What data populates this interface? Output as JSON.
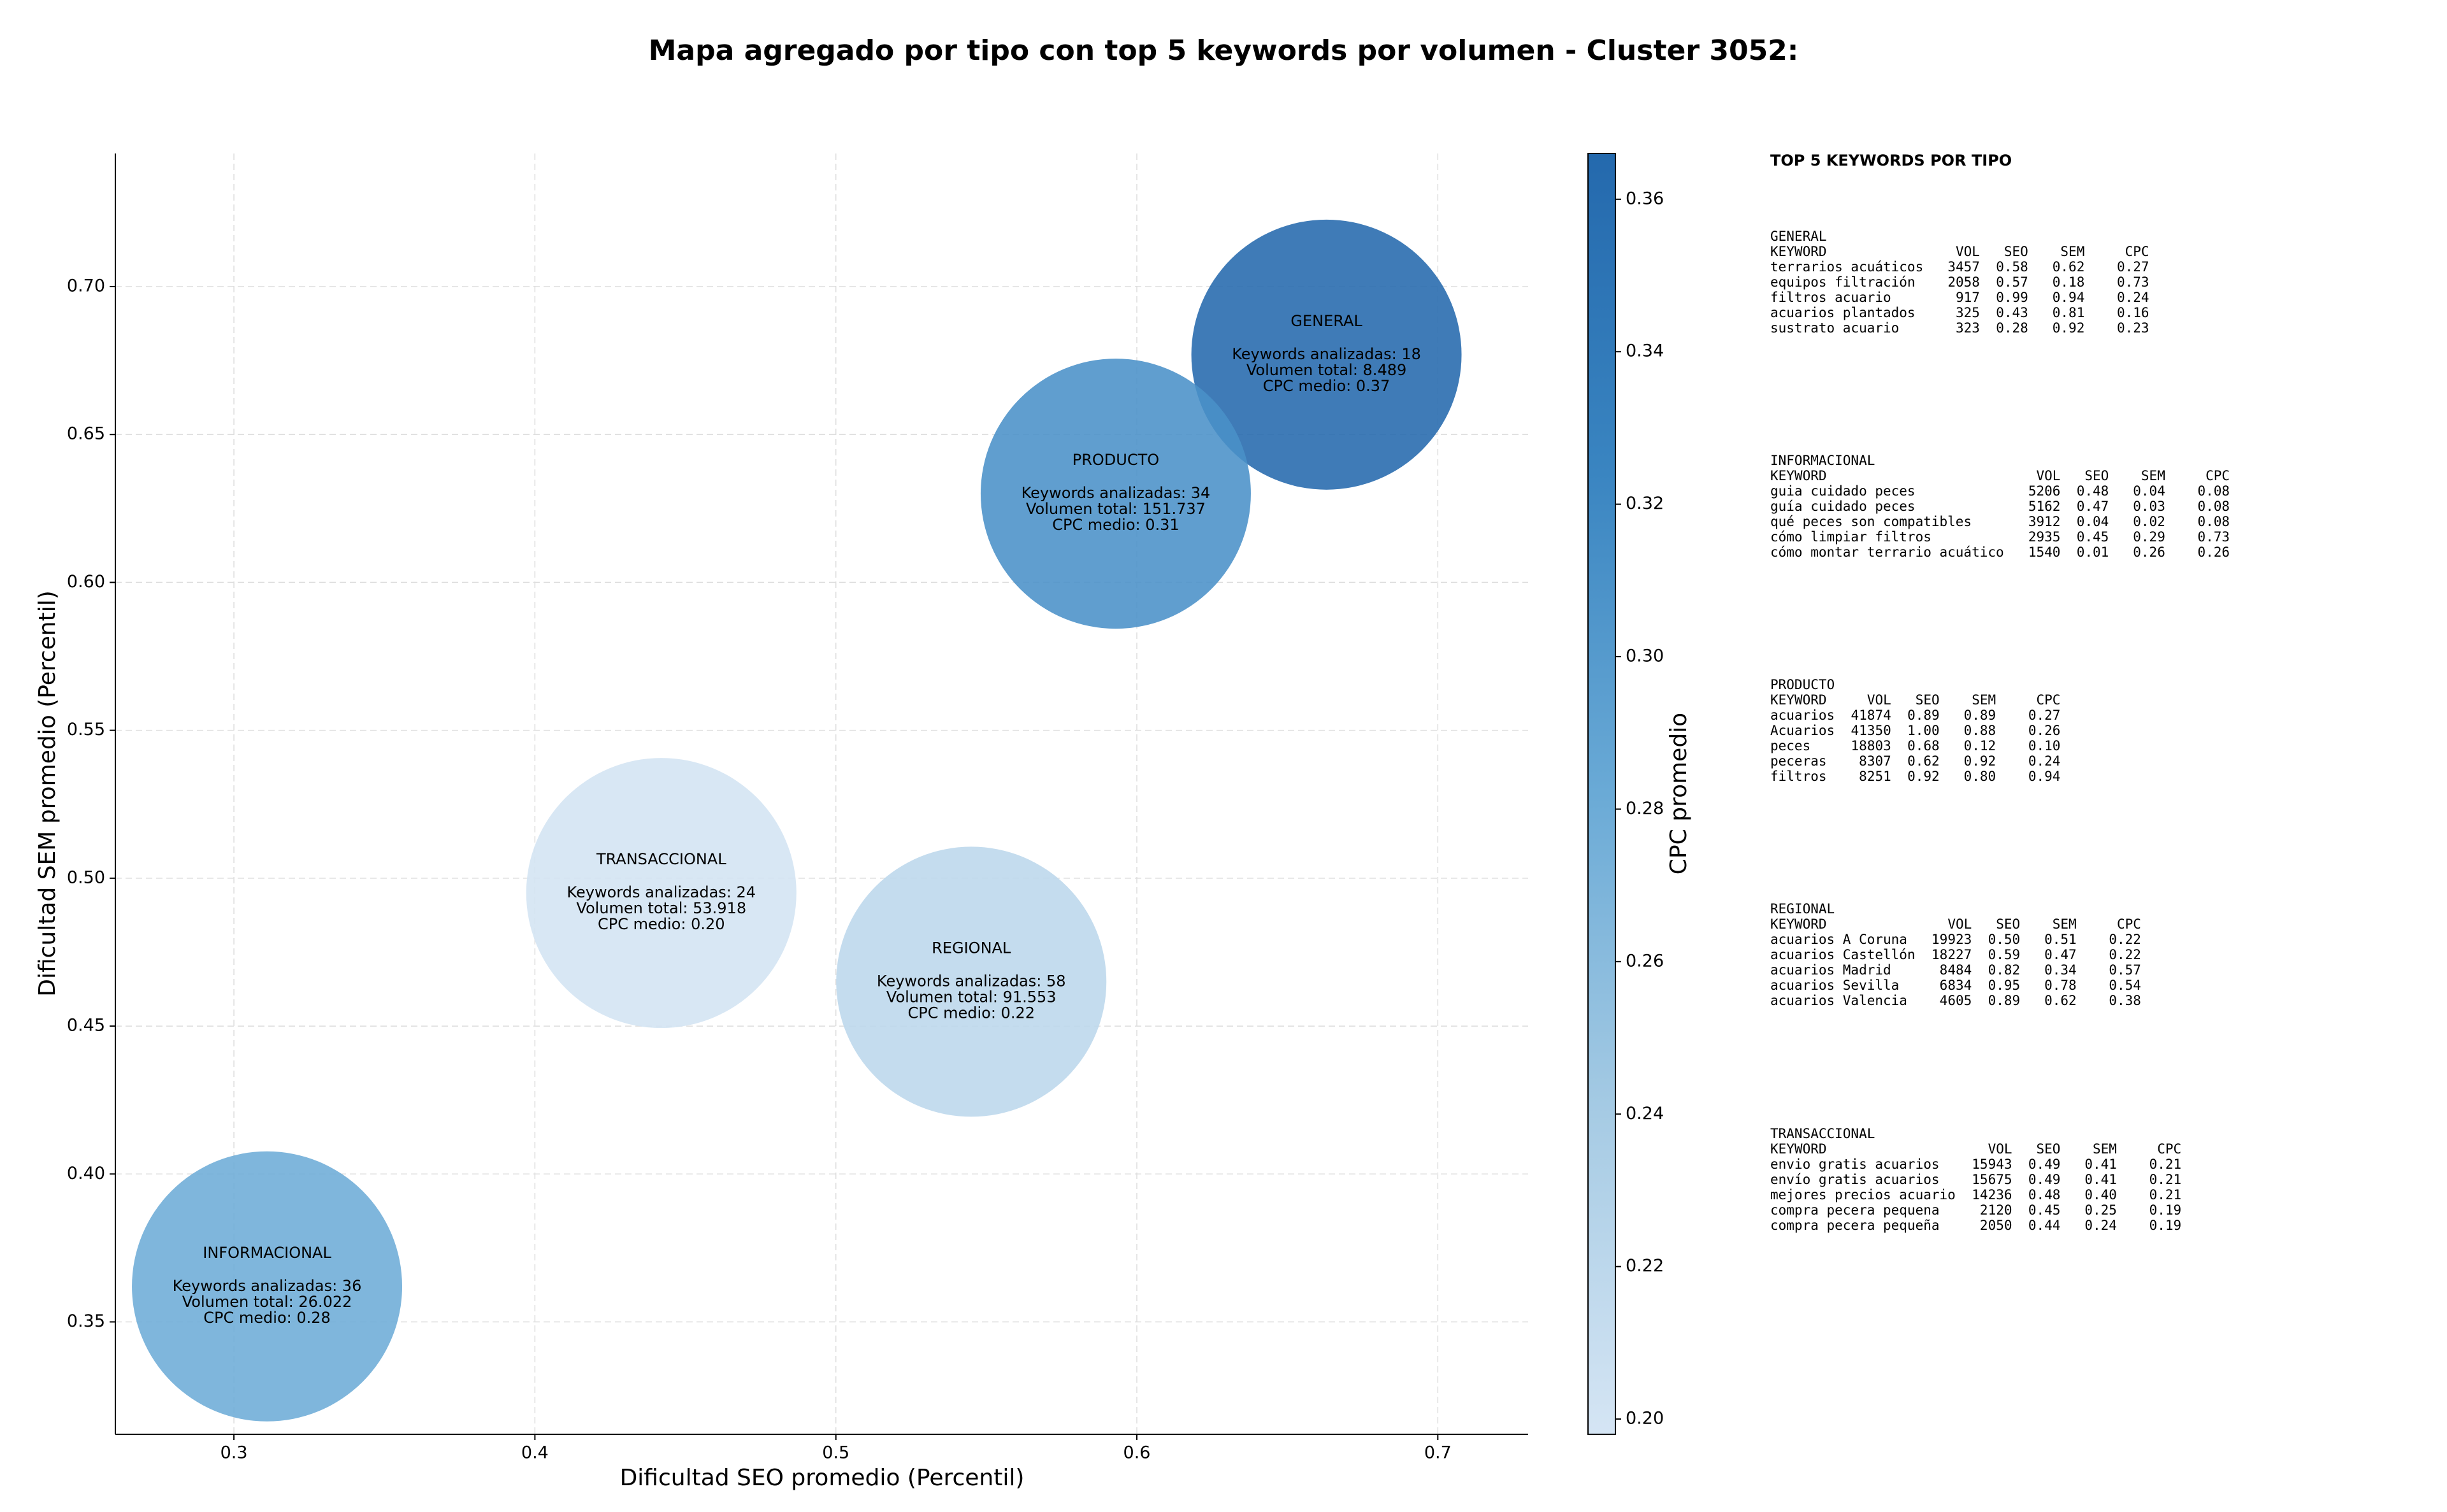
{
  "chart_data": {
    "type": "scatter",
    "title": "Mapa agregado por tipo con top 5 keywords por volumen - Cluster 3052:",
    "xlabel": "Dificultad SEO promedio (Percentil)",
    "ylabel": "Dificultad SEM promedio (Percentil)",
    "xlim": [
      0.2606,
      0.73
    ],
    "ylim": [
      0.312,
      0.745
    ],
    "xticks": [
      0.3,
      0.4,
      0.5,
      0.6,
      0.7
    ],
    "yticks": [
      0.35,
      {
        "value": 0.4,
        "label": "0.40"
      },
      0.45,
      {
        "value": 0.5,
        "label": "0.50"
      },
      0.55,
      {
        "value": 0.6,
        "label": "0.60"
      },
      0.65,
      {
        "value": 0.7,
        "label": "0.70"
      }
    ],
    "grid": true,
    "colorbar": {
      "label": "CPC promedio",
      "lim": [
        0.198,
        0.366
      ],
      "ticks": [
        {
          "value": 0.2,
          "label": "0.20"
        },
        0.22,
        0.24,
        0.26,
        0.28,
        {
          "value": 0.3,
          "label": "0.30"
        },
        0.32,
        0.34,
        0.36
      ],
      "colormap": [
        "#d5e5f4",
        "#a6cbe4",
        "#6aaad6",
        "#3a85c1",
        "#2469ad"
      ]
    },
    "points": [
      {
        "name": "GENERAL",
        "x": 0.663,
        "y": 0.677,
        "cpc": 0.37,
        "labels": [
          "Keywords analizadas: 18",
          "Volumen total: 8.489",
          "CPC medio: 0.37"
        ]
      },
      {
        "name": "PRODUCTO",
        "x": 0.593,
        "y": 0.63,
        "cpc": 0.31,
        "labels": [
          "Keywords analizadas: 34",
          "Volumen total: 151.737",
          "CPC medio: 0.31"
        ]
      },
      {
        "name": "TRANSACCIONAL",
        "x": 0.442,
        "y": 0.495,
        "cpc": 0.2,
        "labels": [
          "Keywords analizadas: 24",
          "Volumen total: 53.918",
          "CPC medio: 0.20"
        ]
      },
      {
        "name": "REGIONAL",
        "x": 0.545,
        "y": 0.465,
        "cpc": 0.22,
        "labels": [
          "Keywords analizadas: 58",
          "Volumen total: 91.553",
          "CPC medio: 0.22"
        ]
      },
      {
        "name": "INFORMACIONAL",
        "x": 0.311,
        "y": 0.362,
        "cpc": 0.28,
        "labels": [
          "Keywords analizadas: 36",
          "Volumen total: 26.022",
          "CPC medio: 0.28"
        ]
      }
    ],
    "panel": {
      "title": "TOP 5 KEYWORDS POR TIPO",
      "columns": [
        "KEYWORD",
        "VOL",
        "SEO",
        "SEM",
        "CPC"
      ],
      "groups": [
        {
          "name": "GENERAL",
          "rows": [
            [
              "terrarios acuáticos",
              "3457",
              "0.58",
              "0.62",
              "0.27"
            ],
            [
              "equipos filtración",
              "2058",
              "0.57",
              "0.18",
              "0.73"
            ],
            [
              "filtros acuario",
              "917",
              "0.99",
              "0.94",
              "0.24"
            ],
            [
              "acuarios plantados",
              "325",
              "0.43",
              "0.81",
              "0.16"
            ],
            [
              "sustrato acuario",
              "323",
              "0.28",
              "0.92",
              "0.23"
            ]
          ]
        },
        {
          "name": "INFORMACIONAL",
          "rows": [
            [
              "guia cuidado peces",
              "5206",
              "0.48",
              "0.04",
              "0.08"
            ],
            [
              "guía cuidado peces",
              "5162",
              "0.47",
              "0.03",
              "0.08"
            ],
            [
              "qué peces son compatibles",
              "3912",
              "0.04",
              "0.02",
              "0.08"
            ],
            [
              "cómo limpiar filtros",
              "2935",
              "0.45",
              "0.29",
              "0.73"
            ],
            [
              "cómo montar terrario acuático",
              "1540",
              "0.01",
              "0.26",
              "0.26"
            ]
          ]
        },
        {
          "name": "PRODUCTO",
          "rows": [
            [
              "acuarios",
              "41874",
              "0.89",
              "0.89",
              "0.27"
            ],
            [
              "Acuarios",
              "41350",
              "1.00",
              "0.88",
              "0.26"
            ],
            [
              "peces",
              "18803",
              "0.68",
              "0.12",
              "0.10"
            ],
            [
              "peceras",
              "8307",
              "0.62",
              "0.92",
              "0.24"
            ],
            [
              "filtros",
              "8251",
              "0.92",
              "0.80",
              "0.94"
            ]
          ]
        },
        {
          "name": "REGIONAL",
          "rows": [
            [
              "acuarios A Coruna",
              "19923",
              "0.50",
              "0.51",
              "0.22"
            ],
            [
              "acuarios Castellón",
              "18227",
              "0.59",
              "0.47",
              "0.22"
            ],
            [
              "acuarios Madrid",
              "8484",
              "0.82",
              "0.34",
              "0.57"
            ],
            [
              "acuarios Sevilla",
              "6834",
              "0.95",
              "0.78",
              "0.54"
            ],
            [
              "acuarios Valencia",
              "4605",
              "0.89",
              "0.62",
              "0.38"
            ]
          ]
        },
        {
          "name": "TRANSACCIONAL",
          "rows": [
            [
              "envio gratis acuarios",
              "15943",
              "0.49",
              "0.41",
              "0.21"
            ],
            [
              "envío gratis acuarios",
              "15675",
              "0.49",
              "0.41",
              "0.21"
            ],
            [
              "mejores precios acuario",
              "14236",
              "0.48",
              "0.40",
              "0.21"
            ],
            [
              "compra pecera pequena",
              "2120",
              "0.45",
              "0.25",
              "0.19"
            ],
            [
              "compra pecera pequeña",
              "2050",
              "0.44",
              "0.24",
              "0.19"
            ]
          ]
        }
      ]
    }
  }
}
